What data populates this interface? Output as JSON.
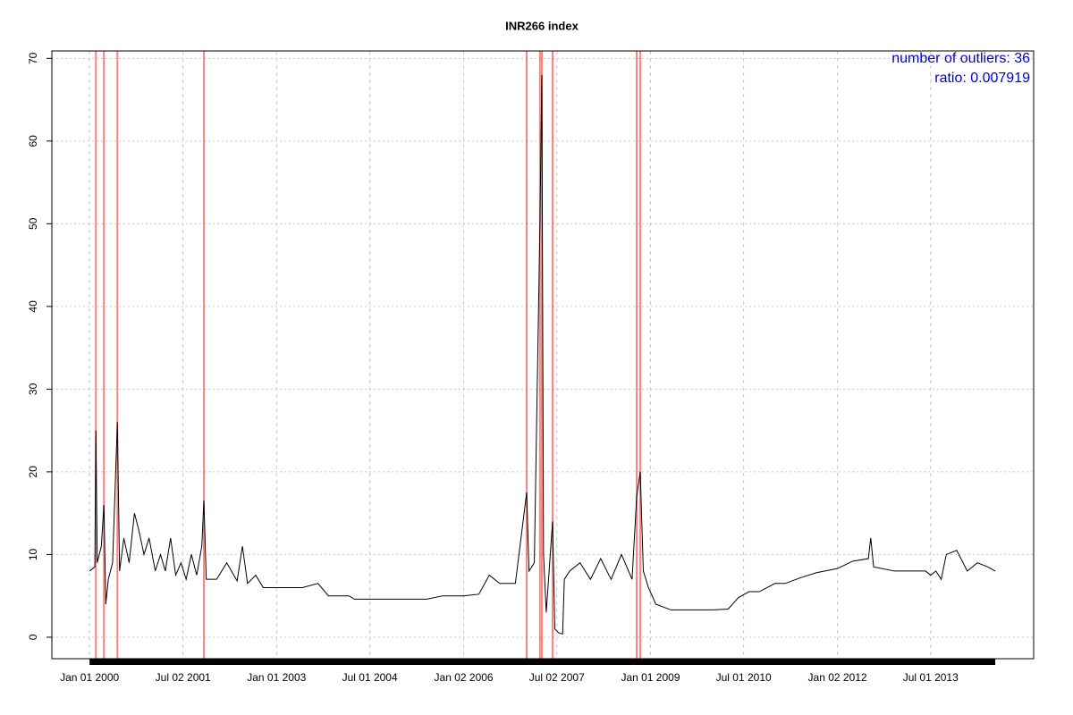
{
  "chart_data": {
    "type": "line",
    "title": "INR266 index",
    "annotations": [
      "number of outliers:  36",
      "ratio:  0.007919"
    ],
    "color": "#000000",
    "outlier_color": "#ff3030",
    "annotation_color": "#0000cc",
    "grid": true,
    "x": [
      "2000-01-01",
      "2000-02-01",
      "2000-02-07",
      "2000-02-15",
      "2000-03-10",
      "2000-03-25",
      "2000-04-05",
      "2000-04-20",
      "2000-05-15",
      "2000-06-12",
      "2000-06-25",
      "2000-07-20",
      "2000-08-20",
      "2000-09-20",
      "2000-10-15",
      "2000-11-15",
      "2000-12-15",
      "2001-01-20",
      "2001-02-20",
      "2001-03-20",
      "2001-04-20",
      "2001-05-20",
      "2001-06-20",
      "2001-07-20",
      "2001-08-20",
      "2001-09-20",
      "2001-10-20",
      "2001-11-01",
      "2001-11-15",
      "2002-01-15",
      "2002-03-15",
      "2002-05-15",
      "2002-06-15",
      "2002-07-15",
      "2002-09-01",
      "2002-10-15",
      "2003-01-01",
      "2003-06-01",
      "2003-09-01",
      "2003-11-01",
      "2004-03-01",
      "2004-04-01",
      "2005-06-01",
      "2005-09-01",
      "2006-01-01",
      "2006-04-01",
      "2006-06-01",
      "2006-08-01",
      "2006-11-01",
      "2007-01-06",
      "2007-01-20",
      "2007-02-20",
      "2007-03-25",
      "2007-04-05",
      "2007-04-15",
      "2007-05-01",
      "2007-06-07",
      "2007-06-20",
      "2007-07-15",
      "2007-08-05",
      "2007-08-15",
      "2007-09-15",
      "2007-11-15",
      "2008-01-15",
      "2008-03-15",
      "2008-05-15",
      "2008-07-15",
      "2008-09-15",
      "2008-10-12",
      "2008-11-02",
      "2008-11-20",
      "2008-12-20",
      "2009-02-01",
      "2009-05-01",
      "2010-01-01",
      "2010-04-01",
      "2010-06-01",
      "2010-08-01",
      "2010-10-01",
      "2011-01-01",
      "2011-03-01",
      "2011-06-01",
      "2011-09-01",
      "2012-01-01",
      "2012-04-01",
      "2012-07-01",
      "2012-07-15",
      "2012-08-01",
      "2012-12-01",
      "2013-06-01",
      "2013-07-01",
      "2013-08-01",
      "2013-09-01",
      "2013-10-01",
      "2013-12-01",
      "2014-02-01",
      "2014-04-01",
      "2014-06-01",
      "2014-07-15"
    ],
    "values": [
      8,
      8.5,
      25,
      9,
      11,
      16,
      4,
      7,
      9,
      26,
      8,
      12,
      9,
      15,
      13,
      10,
      12,
      8,
      10,
      8,
      12,
      7.5,
      9,
      7,
      10,
      7.5,
      11,
      16.5,
      7,
      7,
      9,
      6.8,
      11,
      6.5,
      7.5,
      6,
      6,
      6,
      6.5,
      5,
      5,
      4.6,
      4.6,
      5,
      5,
      5.2,
      7.5,
      6.5,
      6.5,
      17.5,
      8,
      9,
      50,
      68,
      10,
      3,
      14,
      1,
      0.5,
      0.4,
      7,
      8,
      9,
      7,
      9.5,
      7,
      10,
      7,
      17,
      20,
      8,
      6,
      4,
      3.3,
      3.3,
      3.4,
      4.8,
      5.5,
      5.5,
      6.5,
      6.5,
      7.2,
      7.8,
      8.3,
      9.2,
      9.5,
      12,
      8.5,
      8,
      8,
      7.5,
      8,
      7,
      10,
      10.5,
      8,
      9,
      8.5,
      8
    ],
    "outliers": [
      "2000-02-07",
      "2000-03-25",
      "2000-06-12",
      "2001-11-01",
      "2007-01-06",
      "2007-03-25",
      "2007-04-05",
      "2007-06-07",
      "2008-10-12",
      "2008-11-02"
    ],
    "xlim": [
      "1999-05-25",
      "2015-02-25"
    ],
    "xticks": [
      {
        "value": "2000-01-01",
        "label": "Jan 01 2000"
      },
      {
        "value": "2001-07-02",
        "label": "Jul 02 2001"
      },
      {
        "value": "2003-01-01",
        "label": "Jan 01 2003"
      },
      {
        "value": "2004-07-01",
        "label": "Jul 01 2004"
      },
      {
        "value": "2006-01-02",
        "label": "Jan 02 2006"
      },
      {
        "value": "2007-07-02",
        "label": "Jul 02 2007"
      },
      {
        "value": "2009-01-01",
        "label": "Jan 01 2009"
      },
      {
        "value": "2010-07-01",
        "label": "Jul 01 2010"
      },
      {
        "value": "2012-01-02",
        "label": "Jan 02 2012"
      },
      {
        "value": "2013-07-01",
        "label": "Jul 01 2013"
      }
    ],
    "ylim": [
      -2.6,
      70.9
    ],
    "yticks": [
      0,
      10,
      20,
      30,
      40,
      50,
      60,
      70
    ]
  }
}
